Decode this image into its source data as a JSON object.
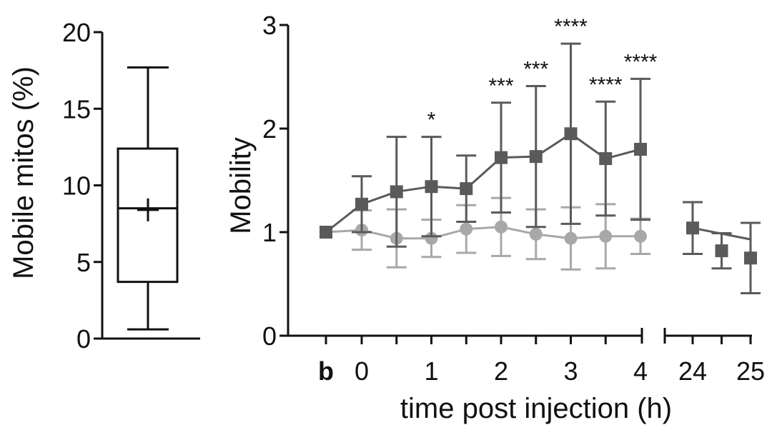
{
  "colors": {
    "axis": "#111111",
    "series_dark": "#5a5a5a",
    "series_light": "#a8a8a8",
    "background": "#ffffff"
  },
  "chart_data": [
    {
      "type": "box",
      "title": "",
      "xlabel": "",
      "ylabel": "Mobile mitos (%)",
      "ylim": [
        0,
        20
      ],
      "yticks": [
        0,
        5,
        10,
        15,
        20
      ],
      "box": {
        "min": 0.6,
        "q1": 3.7,
        "median": 8.5,
        "q3": 12.4,
        "max": 17.7,
        "mean": 8.4
      }
    },
    {
      "type": "line",
      "title": "",
      "xlabel": "time post injection (h)",
      "ylabel": "Mobility",
      "ylim": [
        0,
        3
      ],
      "yticks": [
        0,
        1,
        2,
        3
      ],
      "xtick_labels": [
        "b",
        "0",
        "1",
        "2",
        "3",
        "4",
        "24",
        "25"
      ],
      "x_break": "between 4 and 24",
      "series": [
        {
          "name": "dark squares",
          "marker": "square",
          "x": [
            "b",
            0,
            0.5,
            1,
            1.5,
            2,
            2.5,
            3,
            3.5,
            4
          ],
          "y": [
            1.0,
            1.27,
            1.39,
            1.44,
            1.42,
            1.72,
            1.73,
            1.95,
            1.71,
            1.8
          ],
          "err": [
            0,
            0.27,
            0.53,
            0.48,
            0.32,
            0.53,
            0.68,
            0.87,
            0.55,
            0.68
          ],
          "significance": [
            "",
            "",
            "",
            "*",
            "",
            "***",
            "***",
            "****",
            "****",
            "****"
          ]
        },
        {
          "name": "light circles",
          "marker": "circle",
          "x": [
            "b",
            0,
            0.5,
            1,
            1.5,
            2,
            2.5,
            3,
            3.5,
            4
          ],
          "y": [
            1.0,
            1.02,
            0.94,
            0.94,
            1.03,
            1.05,
            0.98,
            0.94,
            0.96,
            0.96
          ],
          "err": [
            0,
            0.19,
            0.28,
            0.18,
            0.23,
            0.28,
            0.24,
            0.3,
            0.31,
            0.17
          ]
        },
        {
          "name": "dark squares late",
          "marker": "square",
          "x": [
            24,
            24.5,
            25
          ],
          "y": [
            1.04,
            0.82,
            0.75
          ],
          "err": [
            0.25,
            0.17,
            0.34
          ]
        }
      ],
      "late_trend_line": {
        "x": [
          24,
          25
        ],
        "y": [
          1.04,
          0.93
        ]
      }
    }
  ]
}
